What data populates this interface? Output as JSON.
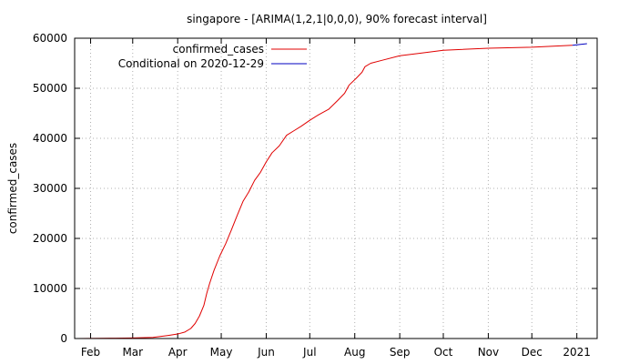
{
  "chart_data": {
    "type": "line",
    "title": "singapore -  [ARIMA(1,2,1|0,0,0), 90% forecast interval]",
    "ylabel": "confirmed_cases",
    "xlabel": "",
    "ylim": [
      0,
      60000
    ],
    "xlim": [
      "2020-01-21",
      "2021-01-15"
    ],
    "grid": true,
    "legend_position": "top-left",
    "yticks": [
      0,
      10000,
      20000,
      30000,
      40000,
      50000,
      60000
    ],
    "xticks": [
      {
        "label": "Feb",
        "date": "2020-02-01"
      },
      {
        "label": "Mar",
        "date": "2020-03-01"
      },
      {
        "label": "Apr",
        "date": "2020-04-01"
      },
      {
        "label": "May",
        "date": "2020-05-01"
      },
      {
        "label": "Jun",
        "date": "2020-06-01"
      },
      {
        "label": "Jul",
        "date": "2020-07-01"
      },
      {
        "label": "Aug",
        "date": "2020-08-01"
      },
      {
        "label": "Sep",
        "date": "2020-09-01"
      },
      {
        "label": "Oct",
        "date": "2020-10-01"
      },
      {
        "label": "Nov",
        "date": "2020-11-01"
      },
      {
        "label": "Dec",
        "date": "2020-12-01"
      },
      {
        "label": "2021",
        "date": "2021-01-01"
      }
    ],
    "series": [
      {
        "name": "confirmed_cases",
        "color": "#e00000",
        "points": [
          [
            "2020-01-23",
            0
          ],
          [
            "2020-02-15",
            60
          ],
          [
            "2020-03-01",
            106
          ],
          [
            "2020-03-15",
            226
          ],
          [
            "2020-03-25",
            600
          ],
          [
            "2020-04-01",
            900
          ],
          [
            "2020-04-06",
            1300
          ],
          [
            "2020-04-10",
            2000
          ],
          [
            "2020-04-13",
            3000
          ],
          [
            "2020-04-16",
            4500
          ],
          [
            "2020-04-19",
            6600
          ],
          [
            "2020-04-21",
            9000
          ],
          [
            "2020-04-23",
            11000
          ],
          [
            "2020-04-26",
            13600
          ],
          [
            "2020-04-30",
            16500
          ],
          [
            "2020-05-04",
            18900
          ],
          [
            "2020-05-08",
            21700
          ],
          [
            "2020-05-12",
            24600
          ],
          [
            "2020-05-16",
            27400
          ],
          [
            "2020-05-20",
            29300
          ],
          [
            "2020-05-24",
            31600
          ],
          [
            "2020-05-28",
            33200
          ],
          [
            "2020-06-01",
            35300
          ],
          [
            "2020-06-05",
            37100
          ],
          [
            "2020-06-10",
            38500
          ],
          [
            "2020-06-15",
            40600
          ],
          [
            "2020-06-20",
            41500
          ],
          [
            "2020-06-25",
            42400
          ],
          [
            "2020-07-01",
            43600
          ],
          [
            "2020-07-07",
            44700
          ],
          [
            "2020-07-14",
            45800
          ],
          [
            "2020-07-20",
            47500
          ],
          [
            "2020-07-25",
            49000
          ],
          [
            "2020-07-28",
            50600
          ],
          [
            "2020-08-02",
            52000
          ],
          [
            "2020-08-06",
            53200
          ],
          [
            "2020-08-08",
            54300
          ],
          [
            "2020-08-12",
            55000
          ],
          [
            "2020-08-20",
            55600
          ],
          [
            "2020-09-01",
            56500
          ],
          [
            "2020-09-15",
            57000
          ],
          [
            "2020-10-01",
            57600
          ],
          [
            "2020-11-01",
            58000
          ],
          [
            "2020-12-01",
            58200
          ],
          [
            "2020-12-29",
            58600
          ]
        ]
      },
      {
        "name": "Conditional on 2020-12-29",
        "color": "#0000c0",
        "points": [
          [
            "2020-12-29",
            58600
          ],
          [
            "2021-01-03",
            58750
          ],
          [
            "2021-01-08",
            58900
          ]
        ]
      }
    ]
  }
}
